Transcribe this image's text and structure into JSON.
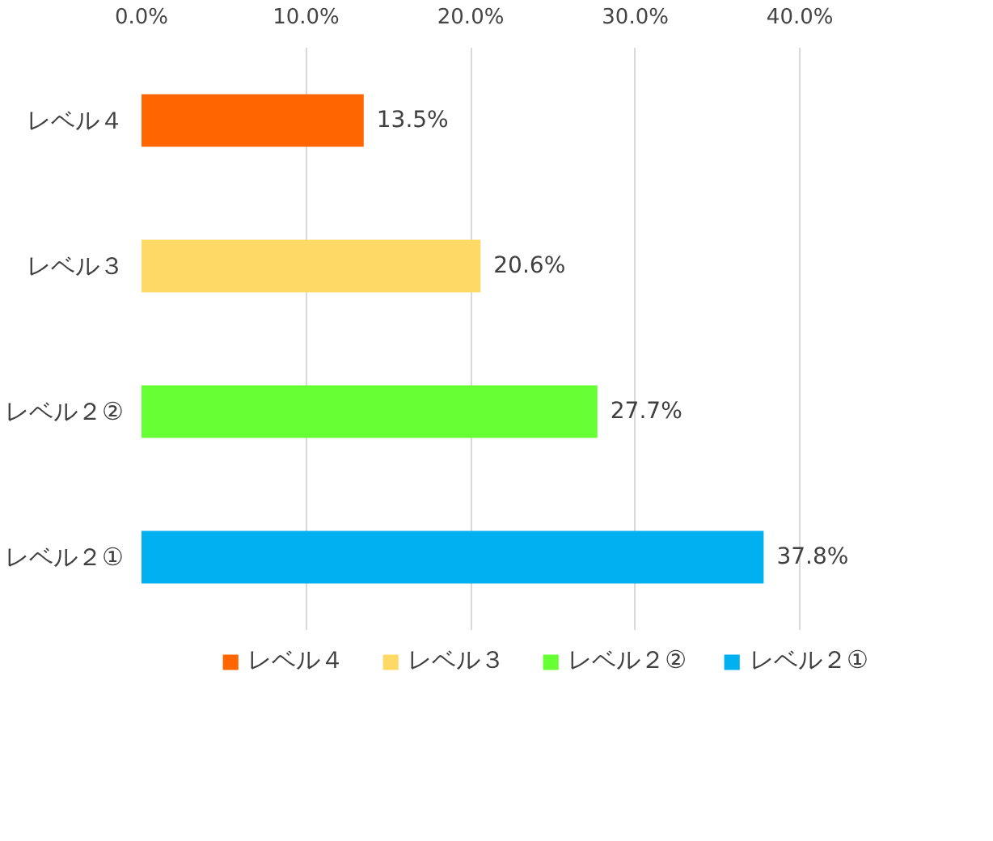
{
  "chart_data": {
    "type": "bar",
    "orientation": "horizontal",
    "categories": [
      "レベル４",
      "レベル３",
      "レベル２②",
      "レベル２①"
    ],
    "series": [
      {
        "name": "レベル４",
        "color": "#ff6600",
        "values": [
          13.5,
          null,
          null,
          null
        ],
        "value_labels": [
          "13.5%",
          null,
          null,
          null
        ]
      },
      {
        "name": "レベル３",
        "color": "#ffd966",
        "values": [
          null,
          20.6,
          null,
          null
        ],
        "value_labels": [
          null,
          "20.6%",
          null,
          null
        ]
      },
      {
        "name": "レベル２②",
        "color": "#66ff33",
        "values": [
          null,
          null,
          27.7,
          null
        ],
        "value_labels": [
          null,
          null,
          "27.7%",
          null
        ]
      },
      {
        "name": "レベル２①",
        "color": "#00b0f0",
        "values": [
          null,
          null,
          null,
          37.8
        ],
        "value_labels": [
          null,
          null,
          null,
          "37.8%"
        ]
      }
    ],
    "xlim": [
      0,
      40
    ],
    "xticks": [
      {
        "value": 0,
        "label": "0.0%"
      },
      {
        "value": 10,
        "label": "10.0%"
      },
      {
        "value": 20,
        "label": "20.0%"
      },
      {
        "value": 30,
        "label": "30.0%"
      },
      {
        "value": 40,
        "label": "40.0%"
      }
    ],
    "grid": "x",
    "legend": "bottom"
  }
}
